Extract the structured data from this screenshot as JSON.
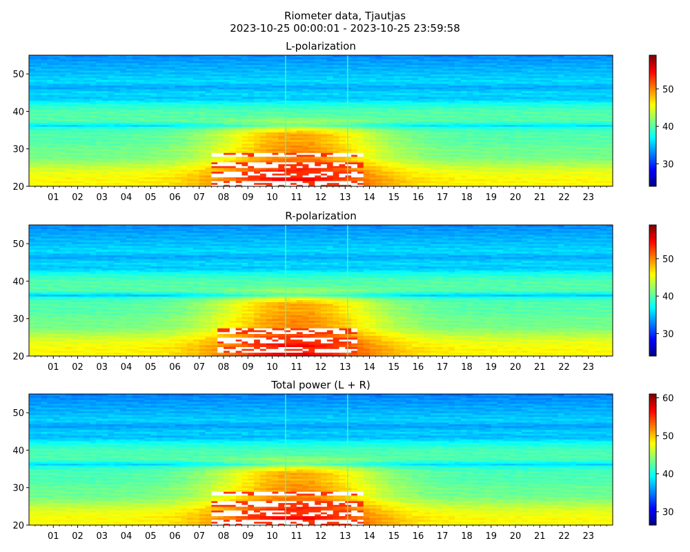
{
  "figure": {
    "title_line1": "Riometer data, Tjautjas",
    "title_line2": "2023-10-25 00:00:01 - 2023-10-25 23:59:58"
  },
  "colormap": "jet",
  "chart_data": [
    {
      "type": "heatmap",
      "title": "L-polarization",
      "xlabel": "",
      "ylabel": "",
      "x_unit": "hour (UT)",
      "xlim": [
        0,
        24
      ],
      "ylim": [
        20,
        55
      ],
      "x_ticks": [
        "01",
        "02",
        "03",
        "04",
        "05",
        "06",
        "07",
        "08",
        "09",
        "10",
        "11",
        "12",
        "13",
        "14",
        "15",
        "16",
        "17",
        "18",
        "19",
        "20",
        "21",
        "22",
        "23"
      ],
      "y_ticks": [
        20,
        30,
        40,
        50
      ],
      "colorbar": {
        "range": [
          24,
          59
        ],
        "ticks": [
          30,
          40,
          50
        ]
      },
      "value_profile_by_y": [
        {
          "y": 20,
          "value": 46
        },
        {
          "y": 22,
          "value": 46
        },
        {
          "y": 24,
          "value": 45
        },
        {
          "y": 26,
          "value": 43
        },
        {
          "y": 28,
          "value": 41
        },
        {
          "y": 30,
          "value": 41
        },
        {
          "y": 32,
          "value": 40
        },
        {
          "y": 34,
          "value": 40
        },
        {
          "y": 35.5,
          "value": 39
        },
        {
          "y": 36.3,
          "value": 36
        },
        {
          "y": 37.5,
          "value": 40
        },
        {
          "y": 40,
          "value": 40
        },
        {
          "y": 42,
          "value": 38
        },
        {
          "y": 43.5,
          "value": 35
        },
        {
          "y": 45,
          "value": 36
        },
        {
          "y": 46.5,
          "value": 34
        },
        {
          "y": 48,
          "value": 36
        },
        {
          "y": 50,
          "value": 35
        },
        {
          "y": 53,
          "value": 34
        },
        {
          "y": 55,
          "value": 33
        }
      ],
      "daytime_enhancement": {
        "peak_hour": 11.0,
        "width_hours": 3.4,
        "max_y": 39,
        "amplitude": 9
      },
      "saturated_region": {
        "hours": [
          7.4,
          13.8
        ],
        "y": [
          20,
          29
        ],
        "color": "#ffffff"
      },
      "vertical_spikes_hours": [
        10.55,
        13.1
      ]
    },
    {
      "type": "heatmap",
      "title": "R-polarization",
      "xlabel": "",
      "ylabel": "",
      "x_unit": "hour (UT)",
      "xlim": [
        0,
        24
      ],
      "ylim": [
        20,
        55
      ],
      "x_ticks": [
        "01",
        "02",
        "03",
        "04",
        "05",
        "06",
        "07",
        "08",
        "09",
        "10",
        "11",
        "12",
        "13",
        "14",
        "15",
        "16",
        "17",
        "18",
        "19",
        "20",
        "21",
        "22",
        "23"
      ],
      "y_ticks": [
        20,
        30,
        40,
        50
      ],
      "colorbar": {
        "range": [
          24,
          59
        ],
        "ticks": [
          30,
          40,
          50
        ]
      },
      "value_profile_by_y": [
        {
          "y": 20,
          "value": 46
        },
        {
          "y": 22,
          "value": 46
        },
        {
          "y": 24,
          "value": 45
        },
        {
          "y": 26,
          "value": 43
        },
        {
          "y": 28,
          "value": 41
        },
        {
          "y": 30,
          "value": 41
        },
        {
          "y": 32,
          "value": 40
        },
        {
          "y": 34,
          "value": 40
        },
        {
          "y": 35.5,
          "value": 39
        },
        {
          "y": 36.3,
          "value": 35
        },
        {
          "y": 37.5,
          "value": 40
        },
        {
          "y": 40,
          "value": 40
        },
        {
          "y": 42,
          "value": 38
        },
        {
          "y": 43.5,
          "value": 35
        },
        {
          "y": 45,
          "value": 36
        },
        {
          "y": 46.5,
          "value": 34
        },
        {
          "y": 48,
          "value": 36
        },
        {
          "y": 50,
          "value": 35
        },
        {
          "y": 53,
          "value": 34
        },
        {
          "y": 55,
          "value": 33
        }
      ],
      "daytime_enhancement": {
        "peak_hour": 11.0,
        "width_hours": 3.4,
        "max_y": 39,
        "amplitude": 9
      },
      "saturated_region": {
        "hours": [
          7.8,
          13.6
        ],
        "y": [
          21,
          29
        ],
        "color": "#ffffff"
      },
      "vertical_spikes_hours": [
        10.55,
        13.1
      ]
    },
    {
      "type": "heatmap",
      "title": "Total power (L + R)",
      "xlabel": "",
      "ylabel": "",
      "x_unit": "hour (UT)",
      "xlim": [
        0,
        24
      ],
      "ylim": [
        20,
        55
      ],
      "x_ticks": [
        "01",
        "02",
        "03",
        "04",
        "05",
        "06",
        "07",
        "08",
        "09",
        "10",
        "11",
        "12",
        "13",
        "14",
        "15",
        "16",
        "17",
        "18",
        "19",
        "20",
        "21",
        "22",
        "23"
      ],
      "y_ticks": [
        20,
        30,
        40,
        50
      ],
      "colorbar": {
        "range": [
          26.5,
          61
        ],
        "ticks": [
          30,
          40,
          50,
          60
        ]
      },
      "value_profile_by_y": [
        {
          "y": 20,
          "value": 48
        },
        {
          "y": 22,
          "value": 48
        },
        {
          "y": 24,
          "value": 47
        },
        {
          "y": 26,
          "value": 45
        },
        {
          "y": 28,
          "value": 43
        },
        {
          "y": 30,
          "value": 43
        },
        {
          "y": 32,
          "value": 42
        },
        {
          "y": 34,
          "value": 42
        },
        {
          "y": 35.5,
          "value": 41
        },
        {
          "y": 36.3,
          "value": 38
        },
        {
          "y": 37.5,
          "value": 42
        },
        {
          "y": 40,
          "value": 42
        },
        {
          "y": 42,
          "value": 40
        },
        {
          "y": 43.5,
          "value": 37
        },
        {
          "y": 45,
          "value": 38
        },
        {
          "y": 46.5,
          "value": 36
        },
        {
          "y": 48,
          "value": 38
        },
        {
          "y": 50,
          "value": 37
        },
        {
          "y": 53,
          "value": 36
        },
        {
          "y": 55,
          "value": 35
        }
      ],
      "daytime_enhancement": {
        "peak_hour": 11.0,
        "width_hours": 3.4,
        "max_y": 39,
        "amplitude": 9
      },
      "saturated_region": {
        "hours": [
          7.4,
          13.8
        ],
        "y": [
          20,
          29
        ],
        "color": "#ffffff"
      },
      "vertical_spikes_hours": [
        10.55,
        13.1
      ]
    }
  ]
}
